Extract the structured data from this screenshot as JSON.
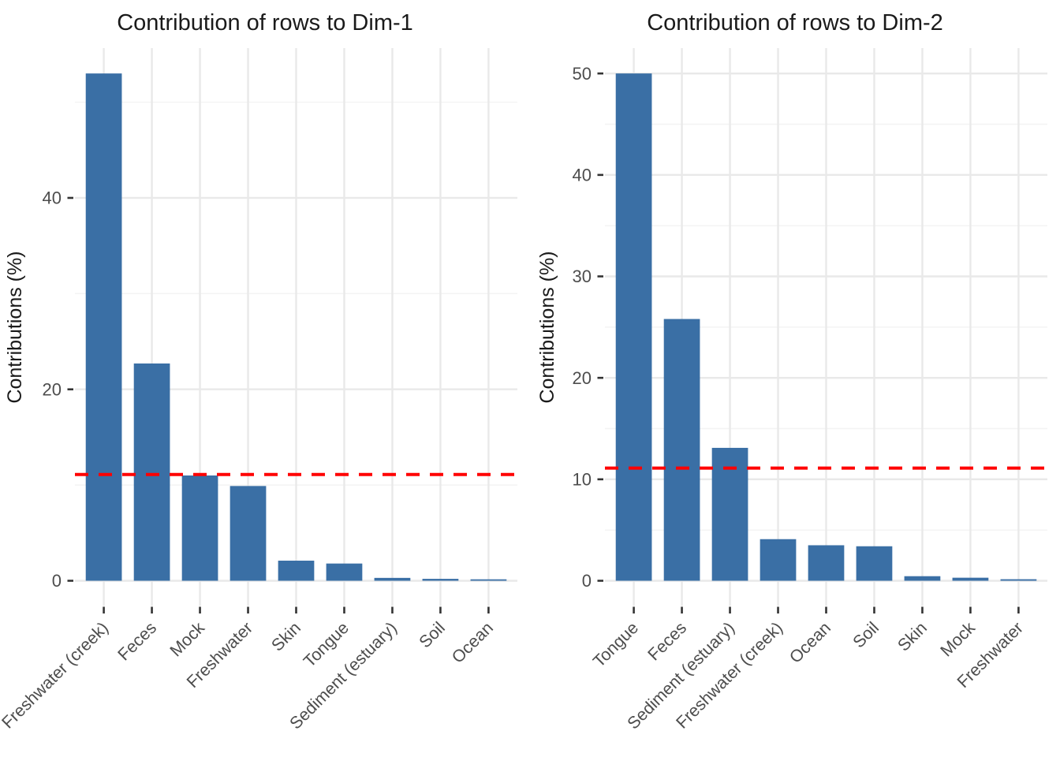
{
  "figure": {
    "background": "#ffffff"
  },
  "style": {
    "bar_color": "#3A6FA5",
    "refline_color": "#FF0000",
    "grid_major_color": "#E9E9E9",
    "grid_minor_color": "#F3F3F3",
    "axis_text_color": "#4D4D4D",
    "title_color": "#1A1A1A",
    "tick_mark_color": "#333333"
  },
  "chart_data": [
    {
      "type": "bar",
      "title": "Contribution of rows to Dim-1",
      "xlabel": "",
      "ylabel": "Contributions (%)",
      "categories": [
        "Freshwater (creek)",
        "Feces",
        "Mock",
        "Freshwater",
        "Skin",
        "Tongue",
        "Sediment (estuary)",
        "Soil",
        "Ocean"
      ],
      "values": [
        53.0,
        22.7,
        11.0,
        9.9,
        2.1,
        1.8,
        0.3,
        0.2,
        0.15
      ],
      "yticks": [
        0,
        20,
        40
      ],
      "yticks_minor": [
        10,
        30,
        50
      ],
      "ylim": [
        0,
        55.65
      ],
      "reference_line": 11.1,
      "grid": true,
      "legend": "none"
    },
    {
      "type": "bar",
      "title": "Contribution of rows to Dim-2",
      "xlabel": "",
      "ylabel": "Contributions (%)",
      "categories": [
        "Tongue",
        "Feces",
        "Sediment (estuary)",
        "Freshwater (creek)",
        "Ocean",
        "Soil",
        "Skin",
        "Mock",
        "Freshwater"
      ],
      "values": [
        50.0,
        25.8,
        13.1,
        4.1,
        3.5,
        3.4,
        0.45,
        0.3,
        0.15
      ],
      "yticks": [
        0,
        10,
        20,
        30,
        40,
        50
      ],
      "yticks_minor": [
        5,
        15,
        25,
        35,
        45
      ],
      "ylim": [
        0,
        52.5
      ],
      "reference_line": 11.1,
      "grid": true,
      "legend": "none"
    }
  ]
}
